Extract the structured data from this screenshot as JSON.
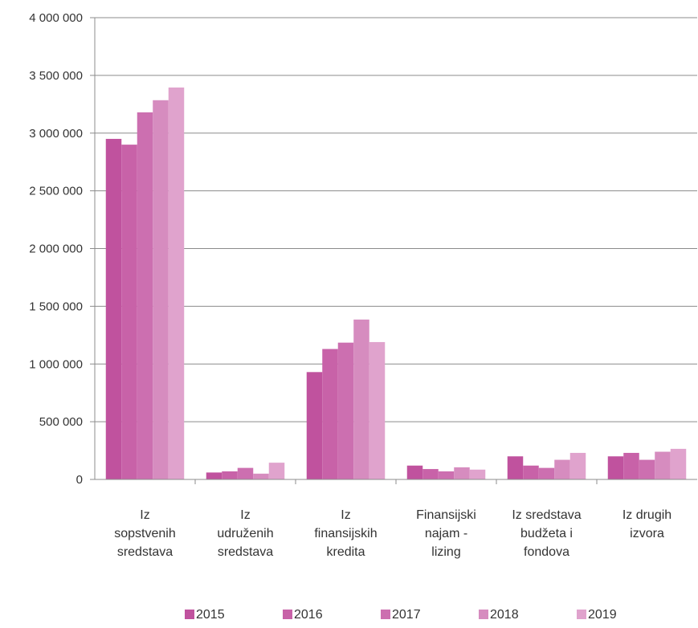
{
  "chart_data": {
    "type": "bar",
    "categories": [
      [
        "Iz",
        "sopstvenih",
        "sredstava"
      ],
      [
        "Iz",
        "udruženih",
        "sredstava"
      ],
      [
        "Iz",
        "finansijskih",
        "kredita"
      ],
      [
        "Finansijski",
        "najam -",
        "lizing"
      ],
      [
        "Iz sredstava",
        "budžeta i",
        "fondova"
      ],
      [
        "Iz drugih",
        "izvora"
      ]
    ],
    "series": [
      {
        "name": "2015",
        "color": "#c0529e",
        "values": [
          2950000,
          60000,
          930000,
          120000,
          200000,
          200000
        ]
      },
      {
        "name": "2016",
        "color": "#c862a8",
        "values": [
          2900000,
          70000,
          1130000,
          90000,
          120000,
          230000
        ]
      },
      {
        "name": "2017",
        "color": "#cc6fb0",
        "values": [
          3180000,
          100000,
          1185000,
          70000,
          100000,
          170000
        ]
      },
      {
        "name": "2018",
        "color": "#d68cbf",
        "values": [
          3285000,
          50000,
          1385000,
          105000,
          170000,
          240000
        ]
      },
      {
        "name": "2019",
        "color": "#e0a3cd",
        "values": [
          3395000,
          145000,
          1190000,
          85000,
          230000,
          265000
        ]
      }
    ],
    "yticks": [
      "0",
      "500 000",
      "1 000 000",
      "1 500 000",
      "2 000 000",
      "2 500 000",
      "3 000 000",
      "3 500 000",
      "4 000 000"
    ],
    "ylim": [
      0,
      4000000
    ],
    "grid": true,
    "legend_position": "bottom",
    "title": "",
    "xlabel": "",
    "ylabel": ""
  }
}
